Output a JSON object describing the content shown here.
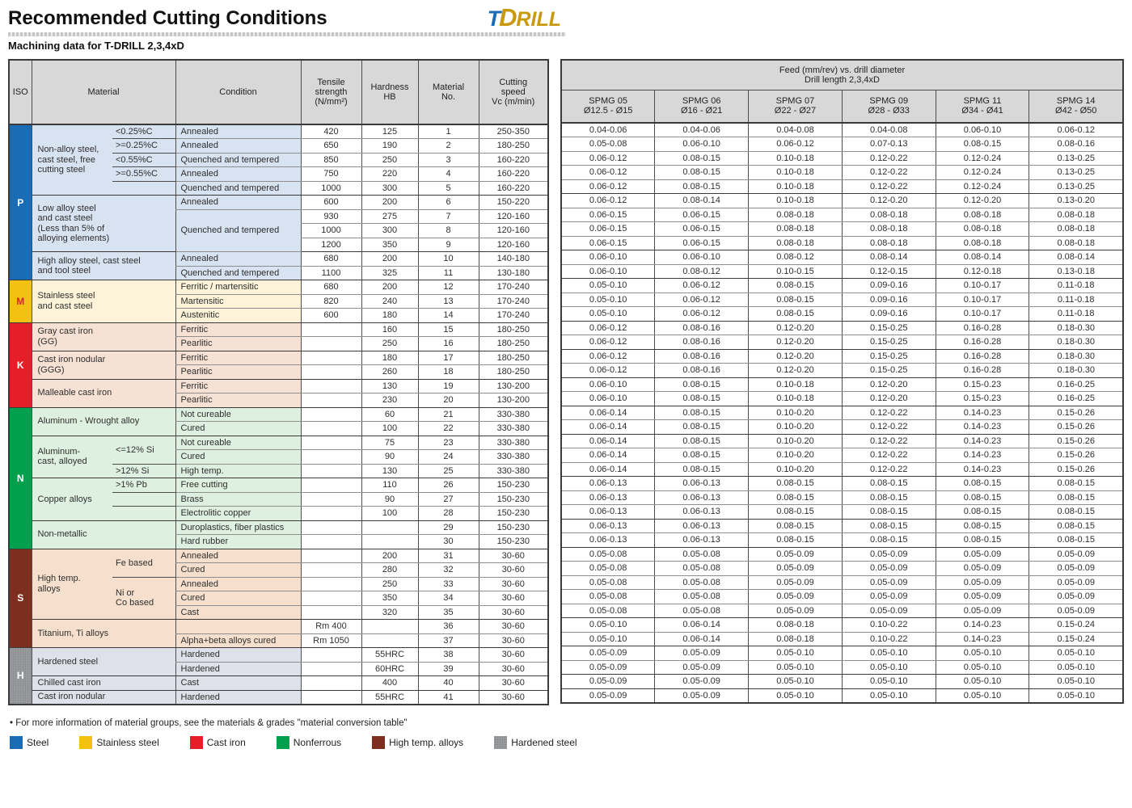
{
  "header": {
    "title": "Recommended Cutting Conditions",
    "subtitle": "Machining data for T-DRILL 2,3,4xD",
    "logo": {
      "t": "T",
      "d": "D",
      "rill": "RILL"
    }
  },
  "left_table": {
    "headers": {
      "iso": "ISO",
      "material": "Material",
      "condition": "Condition",
      "tensile": "Tensile\nstrength\n(N/mm²)",
      "hardness": "Hardness\nHB",
      "material_no": "Material\nNo.",
      "cutting_speed": "Cutting\nspeed\nVc (m/min)"
    }
  },
  "right_table": {
    "title": "Feed (mm/rev) vs. drill diameter\nDrill length 2,3,4xD",
    "cols": [
      {
        "name": "SPMG 05",
        "range": "Ø12.5 - Ø15"
      },
      {
        "name": "SPMG 06",
        "range": "Ø16 - Ø21"
      },
      {
        "name": "SPMG 07",
        "range": "Ø22 - Ø27"
      },
      {
        "name": "SPMG 09",
        "range": "Ø28 - Ø33"
      },
      {
        "name": "SPMG 11",
        "range": "Ø34 - Ø41"
      },
      {
        "name": "SPMG 14",
        "range": "Ø42 - Ø50"
      }
    ]
  },
  "iso_sections": [
    {
      "code": "P",
      "start": 1,
      "span": 11,
      "bg": "#1a6cb5",
      "fg": "#ffffff",
      "tint": "#d8e3f2",
      "texture": false
    },
    {
      "code": "M",
      "start": 12,
      "span": 3,
      "bg": "#f3c111",
      "fg": "#d02a1e",
      "tint": "#fdf3d8",
      "texture": false
    },
    {
      "code": "K",
      "start": 15,
      "span": 6,
      "bg": "#e51e2a",
      "fg": "#ffffff",
      "tint": "#f6e1d4",
      "texture": false
    },
    {
      "code": "N",
      "start": 21,
      "span": 10,
      "bg": "#00a04d",
      "fg": "#ffffff",
      "tint": "#def0e0",
      "texture": false
    },
    {
      "code": "S",
      "start": 31,
      "span": 7,
      "bg": "#7e2e1e",
      "fg": "#ffffff",
      "tint": "#f6e0cd",
      "texture": false
    },
    {
      "code": "H",
      "start": 38,
      "span": 4,
      "bg": "#97999c",
      "fg": "#ffffff",
      "tint": "#dee1e9",
      "texture": true
    }
  ],
  "material_groups": [
    {
      "label": "Non-alloy steel,\ncast steel, free\ncutting steel",
      "start": 1,
      "span": 5,
      "subs": [
        {
          "text": "<0.25%C",
          "span": 1,
          "u": true
        },
        {
          "text": ">=0.25%C",
          "span": 1,
          "u": true
        },
        {
          "text": "<0.55%C",
          "span": 1,
          "u": true
        },
        {
          "text": ">=0.55%C",
          "span": 1,
          "u": true
        },
        {
          "text": "",
          "span": 1,
          "u": false
        }
      ]
    },
    {
      "label": "Low alloy steel\nand cast steel\n(Less than 5% of\nalloying elements)",
      "start": 6,
      "span": 4,
      "subs": null
    },
    {
      "label": "High alloy steel, cast steel\nand tool steel",
      "start": 10,
      "span": 2,
      "subs": null
    },
    {
      "label": "Stainless steel\nand cast steel",
      "start": 12,
      "span": 3,
      "subs": null
    },
    {
      "label": "Gray cast iron\n(GG)",
      "start": 15,
      "span": 2,
      "subs": null
    },
    {
      "label": "Cast iron nodular\n(GGG)",
      "start": 17,
      "span": 2,
      "subs": null
    },
    {
      "label": "Malleable cast iron",
      "start": 19,
      "span": 2,
      "subs": null
    },
    {
      "label": "Aluminum - Wrought alloy",
      "start": 21,
      "span": 2,
      "subs": null
    },
    {
      "label": "Aluminum-\ncast, alloyed",
      "start": 23,
      "span": 3,
      "subs": [
        {
          "text": "<=12% Si",
          "span": 2,
          "u": true
        },
        {
          "text": ">12% Si",
          "span": 1,
          "u": false
        }
      ]
    },
    {
      "label": "Copper alloys",
      "start": 26,
      "span": 3,
      "subs": [
        {
          "text": ">1% Pb",
          "span": 1,
          "u": true
        },
        {
          "text": "",
          "span": 1,
          "u": true
        },
        {
          "text": "",
          "span": 1,
          "u": false
        }
      ]
    },
    {
      "label": "Non-metallic",
      "start": 29,
      "span": 2,
      "subs": null
    },
    {
      "label": "High temp.\nalloys",
      "start": 31,
      "span": 5,
      "subs": [
        {
          "text": "Fe based",
          "span": 2,
          "u": true
        },
        {
          "text": "Ni or\nCo based",
          "span": 3,
          "u": false
        }
      ]
    },
    {
      "label": "Titanium, Ti alloys",
      "start": 36,
      "span": 2,
      "subs": null
    },
    {
      "label": "Hardened steel",
      "start": 38,
      "span": 2,
      "subs": null
    },
    {
      "label": "Chilled cast iron",
      "start": 40,
      "span": 1,
      "subs": null
    },
    {
      "label": "Cast iron nodular",
      "start": 41,
      "span": 1,
      "subs": null
    }
  ],
  "rows": [
    {
      "n": "1",
      "c": "Annealed",
      "cs": 1,
      "t": "420",
      "h": "125",
      "v": "250-350",
      "end": false,
      "f": [
        "0.04-0.06",
        "0.04-0.06",
        "0.04-0.08",
        "0.04-0.08",
        "0.06-0.10",
        "0.06-0.12"
      ]
    },
    {
      "n": "2",
      "c": "Annealed",
      "cs": 1,
      "t": "650",
      "h": "190",
      "v": "180-250",
      "end": false,
      "f": [
        "0.05-0.08",
        "0.06-0.10",
        "0.06-0.12",
        "0.07-0.13",
        "0.08-0.15",
        "0.08-0.16"
      ]
    },
    {
      "n": "3",
      "c": "Quenched and tempered",
      "cs": 1,
      "t": "850",
      "h": "250",
      "v": "160-220",
      "end": false,
      "f": [
        "0.06-0.12",
        "0.08-0.15",
        "0.10-0.18",
        "0.12-0.22",
        "0.12-0.24",
        "0.13-0.25"
      ]
    },
    {
      "n": "4",
      "c": "Annealed",
      "cs": 1,
      "t": "750",
      "h": "220",
      "v": "160-220",
      "end": false,
      "f": [
        "0.06-0.12",
        "0.08-0.15",
        "0.10-0.18",
        "0.12-0.22",
        "0.12-0.24",
        "0.13-0.25"
      ]
    },
    {
      "n": "5",
      "c": "Quenched and tempered",
      "cs": 1,
      "t": "1000",
      "h": "300",
      "v": "160-220",
      "end": true,
      "f": [
        "0.06-0.12",
        "0.08-0.15",
        "0.10-0.18",
        "0.12-0.22",
        "0.12-0.24",
        "0.13-0.25"
      ]
    },
    {
      "n": "6",
      "c": "Annealed",
      "cs": 1,
      "t": "600",
      "h": "200",
      "v": "150-220",
      "end": false,
      "f": [
        "0.06-0.12",
        "0.08-0.14",
        "0.10-0.18",
        "0.12-0.20",
        "0.12-0.20",
        "0.13-0.20"
      ]
    },
    {
      "n": "7",
      "c": "Quenched and tempered",
      "cs": 3,
      "t": "930",
      "h": "275",
      "v": "120-160",
      "end": false,
      "f": [
        "0.06-0.15",
        "0.06-0.15",
        "0.08-0.18",
        "0.08-0.18",
        "0.08-0.18",
        "0.08-0.18"
      ]
    },
    {
      "n": "8",
      "c": null,
      "cs": 0,
      "t": "1000",
      "h": "300",
      "v": "120-160",
      "end": false,
      "f": [
        "0.06-0.15",
        "0.06-0.15",
        "0.08-0.18",
        "0.08-0.18",
        "0.08-0.18",
        "0.08-0.18"
      ]
    },
    {
      "n": "9",
      "c": null,
      "cs": 0,
      "t": "1200",
      "h": "350",
      "v": "120-160",
      "end": true,
      "f": [
        "0.06-0.15",
        "0.06-0.15",
        "0.08-0.18",
        "0.08-0.18",
        "0.08-0.18",
        "0.08-0.18"
      ]
    },
    {
      "n": "10",
      "c": "Annealed",
      "cs": 1,
      "t": "680",
      "h": "200",
      "v": "140-180",
      "end": false,
      "f": [
        "0.06-0.10",
        "0.06-0.10",
        "0.08-0.12",
        "0.08-0.14",
        "0.08-0.14",
        "0.08-0.14"
      ]
    },
    {
      "n": "11",
      "c": "Quenched and tempered",
      "cs": 1,
      "t": "1100",
      "h": "325",
      "v": "130-180",
      "end": true,
      "f": [
        "0.06-0.10",
        "0.08-0.12",
        "0.10-0.15",
        "0.12-0.15",
        "0.12-0.18",
        "0.13-0.18"
      ]
    },
    {
      "n": "12",
      "c": "Ferritic / martensitic",
      "cs": 1,
      "t": "680",
      "h": "200",
      "v": "170-240",
      "end": false,
      "f": [
        "0.05-0.10",
        "0.06-0.12",
        "0.08-0.15",
        "0.09-0.16",
        "0.10-0.17",
        "0.11-0.18"
      ]
    },
    {
      "n": "13",
      "c": "Martensitic",
      "cs": 1,
      "t": "820",
      "h": "240",
      "v": "170-240",
      "end": false,
      "f": [
        "0.05-0.10",
        "0.06-0.12",
        "0.08-0.15",
        "0.09-0.16",
        "0.10-0.17",
        "0.11-0.18"
      ]
    },
    {
      "n": "14",
      "c": "Austenitic",
      "cs": 1,
      "t": "600",
      "h": "180",
      "v": "170-240",
      "end": true,
      "f": [
        "0.05-0.10",
        "0.06-0.12",
        "0.08-0.15",
        "0.09-0.16",
        "0.10-0.17",
        "0.11-0.18"
      ]
    },
    {
      "n": "15",
      "c": "Ferritic",
      "cs": 1,
      "t": "",
      "h": "160",
      "v": "180-250",
      "end": false,
      "f": [
        "0.06-0.12",
        "0.08-0.16",
        "0.12-0.20",
        "0.15-0.25",
        "0.16-0.28",
        "0.18-0.30"
      ]
    },
    {
      "n": "16",
      "c": "Pearlitic",
      "cs": 1,
      "t": "",
      "h": "250",
      "v": "180-250",
      "end": true,
      "f": [
        "0.06-0.12",
        "0.08-0.16",
        "0.12-0.20",
        "0.15-0.25",
        "0.16-0.28",
        "0.18-0.30"
      ]
    },
    {
      "n": "17",
      "c": "Ferritic",
      "cs": 1,
      "t": "",
      "h": "180",
      "v": "180-250",
      "end": false,
      "f": [
        "0.06-0.12",
        "0.08-0.16",
        "0.12-0.20",
        "0.15-0.25",
        "0.16-0.28",
        "0.18-0.30"
      ]
    },
    {
      "n": "18",
      "c": "Pearlitic",
      "cs": 1,
      "t": "",
      "h": "260",
      "v": "180-250",
      "end": true,
      "f": [
        "0.06-0.12",
        "0.08-0.16",
        "0.12-0.20",
        "0.15-0.25",
        "0.16-0.28",
        "0.18-0.30"
      ]
    },
    {
      "n": "19",
      "c": "Ferritic",
      "cs": 1,
      "t": "",
      "h": "130",
      "v": "130-200",
      "end": false,
      "f": [
        "0.06-0.10",
        "0.08-0.15",
        "0.10-0.18",
        "0.12-0.20",
        "0.15-0.23",
        "0.16-0.25"
      ]
    },
    {
      "n": "20",
      "c": "Pearlitic",
      "cs": 1,
      "t": "",
      "h": "230",
      "v": "130-200",
      "end": true,
      "f": [
        "0.06-0.10",
        "0.08-0.15",
        "0.10-0.18",
        "0.12-0.20",
        "0.15-0.23",
        "0.16-0.25"
      ]
    },
    {
      "n": "21",
      "c": "Not cureable",
      "cs": 1,
      "t": "",
      "h": "60",
      "v": "330-380",
      "end": false,
      "f": [
        "0.06-0.14",
        "0.08-0.15",
        "0.10-0.20",
        "0.12-0.22",
        "0.14-0.23",
        "0.15-0.26"
      ]
    },
    {
      "n": "22",
      "c": "Cured",
      "cs": 1,
      "t": "",
      "h": "100",
      "v": "330-380",
      "end": true,
      "f": [
        "0.06-0.14",
        "0.08-0.15",
        "0.10-0.20",
        "0.12-0.22",
        "0.14-0.23",
        "0.15-0.26"
      ]
    },
    {
      "n": "23",
      "c": "Not cureable",
      "cs": 1,
      "t": "",
      "h": "75",
      "v": "330-380",
      "end": false,
      "f": [
        "0.06-0.14",
        "0.08-0.15",
        "0.10-0.20",
        "0.12-0.22",
        "0.14-0.23",
        "0.15-0.26"
      ]
    },
    {
      "n": "24",
      "c": "Cured",
      "cs": 1,
      "t": "",
      "h": "90",
      "v": "330-380",
      "end": false,
      "f": [
        "0.06-0.14",
        "0.08-0.15",
        "0.10-0.20",
        "0.12-0.22",
        "0.14-0.23",
        "0.15-0.26"
      ]
    },
    {
      "n": "25",
      "c": "High temp.",
      "cs": 1,
      "t": "",
      "h": "130",
      "v": "330-380",
      "end": true,
      "f": [
        "0.06-0.14",
        "0.08-0.15",
        "0.10-0.20",
        "0.12-0.22",
        "0.14-0.23",
        "0.15-0.26"
      ]
    },
    {
      "n": "26",
      "c": "Free cutting",
      "cs": 1,
      "t": "",
      "h": "110",
      "v": "150-230",
      "end": false,
      "f": [
        "0.06-0.13",
        "0.06-0.13",
        "0.08-0.15",
        "0.08-0.15",
        "0.08-0.15",
        "0.08-0.15"
      ]
    },
    {
      "n": "27",
      "c": "Brass",
      "cs": 1,
      "t": "",
      "h": "90",
      "v": "150-230",
      "end": false,
      "f": [
        "0.06-0.13",
        "0.06-0.13",
        "0.08-0.15",
        "0.08-0.15",
        "0.08-0.15",
        "0.08-0.15"
      ]
    },
    {
      "n": "28",
      "c": "Electrolitic copper",
      "cs": 1,
      "t": "",
      "h": "100",
      "v": "150-230",
      "end": true,
      "f": [
        "0.06-0.13",
        "0.06-0.13",
        "0.08-0.15",
        "0.08-0.15",
        "0.08-0.15",
        "0.08-0.15"
      ]
    },
    {
      "n": "29",
      "c": "Duroplastics, fiber plastics",
      "cs": 1,
      "t": "",
      "h": "",
      "v": "150-230",
      "end": false,
      "f": [
        "0.06-0.13",
        "0.06-0.13",
        "0.08-0.15",
        "0.08-0.15",
        "0.08-0.15",
        "0.08-0.15"
      ]
    },
    {
      "n": "30",
      "c": "Hard rubber",
      "cs": 1,
      "t": "",
      "h": "",
      "v": "150-230",
      "end": true,
      "f": [
        "0.06-0.13",
        "0.06-0.13",
        "0.08-0.15",
        "0.08-0.15",
        "0.08-0.15",
        "0.08-0.15"
      ]
    },
    {
      "n": "31",
      "c": "Annealed",
      "cs": 1,
      "t": "",
      "h": "200",
      "v": "30-60",
      "end": false,
      "f": [
        "0.05-0.08",
        "0.05-0.08",
        "0.05-0.09",
        "0.05-0.09",
        "0.05-0.09",
        "0.05-0.09"
      ]
    },
    {
      "n": "32",
      "c": "Cured",
      "cs": 1,
      "t": "",
      "h": "280",
      "v": "30-60",
      "end": false,
      "f": [
        "0.05-0.08",
        "0.05-0.08",
        "0.05-0.09",
        "0.05-0.09",
        "0.05-0.09",
        "0.05-0.09"
      ]
    },
    {
      "n": "33",
      "c": "Annealed",
      "cs": 1,
      "t": "",
      "h": "250",
      "v": "30-60",
      "end": false,
      "f": [
        "0.05-0.08",
        "0.05-0.08",
        "0.05-0.09",
        "0.05-0.09",
        "0.05-0.09",
        "0.05-0.09"
      ]
    },
    {
      "n": "34",
      "c": "Cured",
      "cs": 1,
      "t": "",
      "h": "350",
      "v": "30-60",
      "end": false,
      "f": [
        "0.05-0.08",
        "0.05-0.08",
        "0.05-0.09",
        "0.05-0.09",
        "0.05-0.09",
        "0.05-0.09"
      ]
    },
    {
      "n": "35",
      "c": "Cast",
      "cs": 1,
      "t": "",
      "h": "320",
      "v": "30-60",
      "end": true,
      "f": [
        "0.05-0.08",
        "0.05-0.08",
        "0.05-0.09",
        "0.05-0.09",
        "0.05-0.09",
        "0.05-0.09"
      ]
    },
    {
      "n": "36",
      "c": "",
      "cs": 1,
      "t": "Rm 400",
      "h": "",
      "v": "30-60",
      "end": false,
      "f": [
        "0.05-0.10",
        "0.06-0.14",
        "0.08-0.18",
        "0.10-0.22",
        "0.14-0.23",
        "0.15-0.24"
      ]
    },
    {
      "n": "37",
      "c": "Alpha+beta alloys cured",
      "cs": 1,
      "t": "Rm 1050",
      "h": "",
      "v": "30-60",
      "end": true,
      "f": [
        "0.05-0.10",
        "0.06-0.14",
        "0.08-0.18",
        "0.10-0.22",
        "0.14-0.23",
        "0.15-0.24"
      ]
    },
    {
      "n": "38",
      "c": "Hardened",
      "cs": 1,
      "t": "",
      "h": "55HRC",
      "v": "30-60",
      "end": false,
      "f": [
        "0.05-0.09",
        "0.05-0.09",
        "0.05-0.10",
        "0.05-0.10",
        "0.05-0.10",
        "0.05-0.10"
      ]
    },
    {
      "n": "39",
      "c": "Hardened",
      "cs": 1,
      "t": "",
      "h": "60HRC",
      "v": "30-60",
      "end": true,
      "f": [
        "0.05-0.09",
        "0.05-0.09",
        "0.05-0.10",
        "0.05-0.10",
        "0.05-0.10",
        "0.05-0.10"
      ]
    },
    {
      "n": "40",
      "c": "Cast",
      "cs": 1,
      "t": "",
      "h": "400",
      "v": "30-60",
      "end": true,
      "f": [
        "0.05-0.09",
        "0.05-0.09",
        "0.05-0.10",
        "0.05-0.10",
        "0.05-0.10",
        "0.05-0.10"
      ]
    },
    {
      "n": "41",
      "c": "Hardened",
      "cs": 1,
      "t": "",
      "h": "55HRC",
      "v": "30-60",
      "end": true,
      "f": [
        "0.05-0.09",
        "0.05-0.09",
        "0.05-0.10",
        "0.05-0.10",
        "0.05-0.10",
        "0.05-0.10"
      ]
    }
  ],
  "footnote": "• For more information of material groups, see the materials & grades \"material conversion table\"",
  "legend": {
    "items": [
      {
        "label": "Steel",
        "color": "#1a6cb5",
        "texture": false
      },
      {
        "label": "Stainless steel",
        "color": "#f3c111",
        "texture": false
      },
      {
        "label": "Cast iron",
        "color": "#e51e2a",
        "texture": false
      },
      {
        "label": "Nonferrous",
        "color": "#00a04d",
        "texture": false
      },
      {
        "label": "High temp. alloys",
        "color": "#7e2e1e",
        "texture": false
      },
      {
        "label": "Hardened steel",
        "color": "#97999c",
        "texture": true
      }
    ]
  }
}
